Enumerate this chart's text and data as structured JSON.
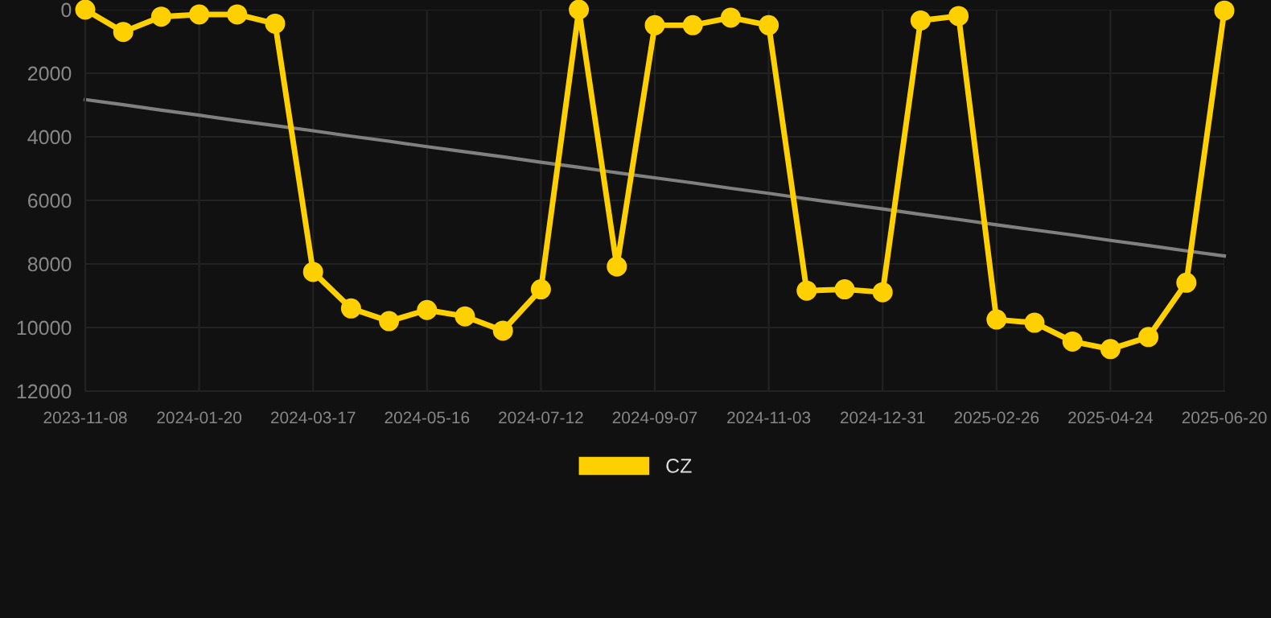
{
  "chart_data": {
    "type": "line",
    "categories": [
      "2023-11-08",
      null,
      null,
      "2024-01-20",
      null,
      null,
      "2024-03-17",
      null,
      null,
      "2024-05-16",
      null,
      null,
      "2024-07-12",
      null,
      null,
      "2024-09-07",
      null,
      null,
      "2024-11-03",
      null,
      null,
      "2024-12-31",
      null,
      null,
      "2025-02-26",
      null,
      null,
      "2025-04-24",
      null,
      null,
      "2025-06-20"
    ],
    "series": [
      {
        "name": "CZ",
        "color": "#ffd000",
        "marker": "circle",
        "values": [
          0,
          700,
          220,
          150,
          150,
          440,
          8250,
          9400,
          9800,
          9450,
          9650,
          10100,
          8800,
          0,
          8080,
          490,
          490,
          250,
          490,
          8840,
          8800,
          8890,
          340,
          200,
          9750,
          9850,
          10440,
          10680,
          10300,
          8590,
          30
        ]
      },
      {
        "type": "line",
        "color": "#808080",
        "marker": "none",
        "values": [
          2830,
          2990,
          3160,
          3320,
          3490,
          3650,
          3810,
          3980,
          4140,
          4310,
          4470,
          4630,
          4800,
          4960,
          5130,
          5290,
          5450,
          5620,
          5780,
          5950,
          6110,
          6270,
          6440,
          6600,
          6770,
          6930,
          7090,
          7260,
          7420,
          7590,
          7750
        ]
      }
    ],
    "ylim": [
      12000,
      0
    ],
    "yticks": [
      0,
      2000,
      4000,
      6000,
      8000,
      10000,
      12000
    ],
    "grid": true,
    "legend": "bottom",
    "line_style": "solid"
  }
}
